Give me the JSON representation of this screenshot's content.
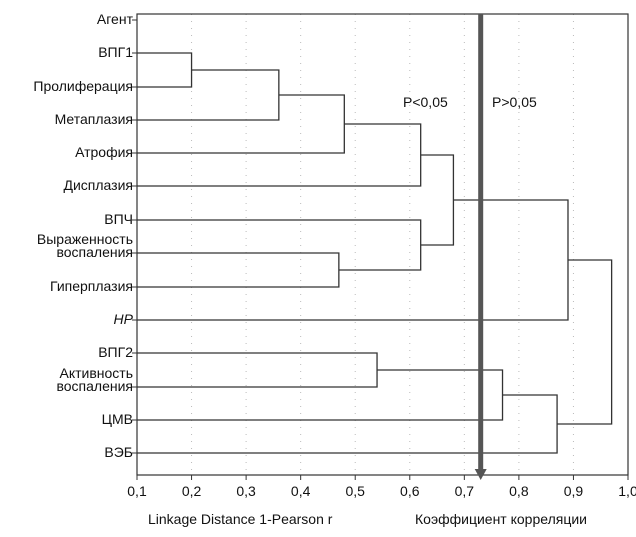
{
  "chart_data": {
    "type": "dendrogram",
    "orientation": "horizontal",
    "xlabel": "Linkage Distance 1-Pearson r",
    "xlabel_secondary": "Коэффициент корреляции",
    "xlim": [
      0.1,
      1.0
    ],
    "xticks": [
      "0,1",
      "0,2",
      "0,3",
      "0,4",
      "0,5",
      "0,6",
      "0,7",
      "0,8",
      "0,9",
      "1,0"
    ],
    "xtick_values": [
      0.1,
      0.2,
      0.3,
      0.4,
      0.5,
      0.6,
      0.7,
      0.8,
      0.9,
      1.0
    ],
    "grid": "dotted vertical",
    "leaves": [
      {
        "label": "Агент",
        "italic": false
      },
      {
        "label": "ВПГ1",
        "italic": false
      },
      {
        "label": "Пролиферация",
        "italic": false
      },
      {
        "label": "Метаплазия",
        "italic": false
      },
      {
        "label": "Атрофия",
        "italic": false
      },
      {
        "label": "Дисплазия",
        "italic": false
      },
      {
        "label": "ВПЧ",
        "italic": false
      },
      {
        "label": "Выраженность\nвоспаления",
        "italic": false
      },
      {
        "label": "Гиперплазия",
        "italic": false
      },
      {
        "label": "HP",
        "italic": true
      },
      {
        "label": "ВПГ2",
        "italic": false
      },
      {
        "label": "Активность\nвоспаления",
        "italic": false
      },
      {
        "label": "ЦМВ",
        "italic": false
      },
      {
        "label": "ВЭБ",
        "italic": false
      }
    ],
    "merges": [
      {
        "a": 1,
        "b": 2,
        "distance": 0.2
      },
      {
        "a": 14,
        "b": 3,
        "distance": 0.36
      },
      {
        "a": 15,
        "b": 4,
        "distance": 0.48
      },
      {
        "a": 16,
        "b": 5,
        "distance": 0.62
      },
      {
        "a": 7,
        "b": 8,
        "distance": 0.47
      },
      {
        "a": 6,
        "b": 18,
        "distance": 0.62
      },
      {
        "a": 17,
        "b": 19,
        "distance": 0.68
      },
      {
        "a": 20,
        "b": 9,
        "distance": 0.89
      },
      {
        "a": 10,
        "b": 11,
        "distance": 0.54
      },
      {
        "a": 22,
        "b": 12,
        "distance": 0.77
      },
      {
        "a": 23,
        "b": 13,
        "distance": 0.87
      },
      {
        "a": 21,
        "b": 24,
        "distance": 0.97
      }
    ],
    "threshold": {
      "value": 0.73,
      "left_label": "P<0,05",
      "right_label": "P>0,05"
    }
  },
  "colors": {
    "lines": "#333333",
    "threshold": "#555555",
    "grid": "#bbbbbb",
    "text": "#111111"
  }
}
